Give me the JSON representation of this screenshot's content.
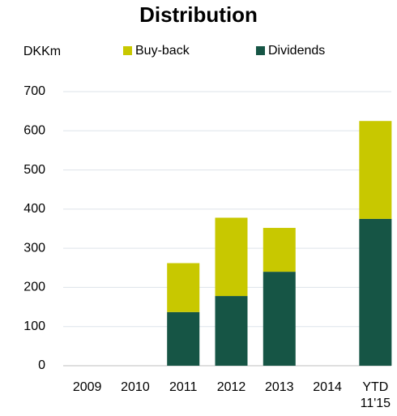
{
  "chart_data": {
    "type": "bar",
    "stacked": true,
    "title": "Distribution",
    "y_label": "DKKm",
    "categories": [
      "2009",
      "2010",
      "2011",
      "2012",
      "2013",
      "2014",
      "YTD 11'15"
    ],
    "series": [
      {
        "name": "Dividends",
        "color": "#165545",
        "values": [
          0,
          0,
          137,
          178,
          240,
          0,
          375
        ]
      },
      {
        "name": "Buy-back",
        "color": "#c8c800",
        "values": [
          0,
          0,
          125,
          200,
          112,
          0,
          250
        ]
      }
    ],
    "ylim": [
      0,
      700
    ],
    "yticks": [
      0,
      100,
      200,
      300,
      400,
      500,
      600,
      700
    ],
    "grid": true
  }
}
